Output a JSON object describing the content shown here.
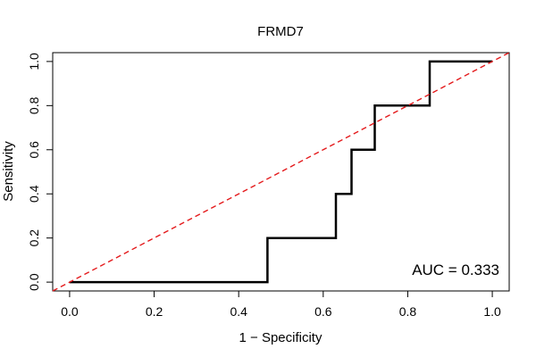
{
  "chart_data": {
    "type": "line",
    "title": "FRMD7",
    "xlabel": "1 − Specificity",
    "ylabel": "Sensitivity",
    "xlim": [
      -0.04,
      1.04
    ],
    "ylim": [
      -0.04,
      1.04
    ],
    "xticks": [
      0.0,
      0.2,
      0.4,
      0.6,
      0.8,
      1.0
    ],
    "xtick_labels": [
      "0.0",
      "0.2",
      "0.4",
      "0.6",
      "0.8",
      "1.0"
    ],
    "yticks": [
      0.0,
      0.2,
      0.4,
      0.6,
      0.8,
      1.0
    ],
    "ytick_labels": [
      "0.0",
      "0.2",
      "0.4",
      "0.6",
      "0.8",
      "1.0"
    ],
    "grid": false,
    "annotation": "AUC = 0.333",
    "series": [
      {
        "kind": "roc-step",
        "color": "#000000",
        "x": [
          0.0,
          0.468,
          0.468,
          0.63,
          0.63,
          0.667,
          0.667,
          0.722,
          0.722,
          0.852,
          0.852,
          1.0
        ],
        "y": [
          0.0,
          0.0,
          0.2,
          0.2,
          0.4,
          0.4,
          0.6,
          0.6,
          0.8,
          0.8,
          1.0,
          1.0
        ]
      },
      {
        "kind": "reference-diagonal",
        "color": "#e41a1c",
        "dashed": true,
        "x": [
          -0.04,
          1.04
        ],
        "y": [
          -0.04,
          1.04
        ]
      }
    ]
  }
}
